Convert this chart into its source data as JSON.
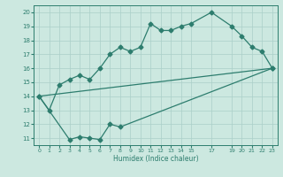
{
  "line1": {
    "x": [
      0,
      1,
      2,
      3,
      4,
      5,
      6,
      7,
      8,
      9,
      10,
      11,
      12,
      13,
      14,
      15,
      17,
      19,
      20,
      21,
      22,
      23
    ],
    "y": [
      14,
      13,
      14.8,
      15.2,
      15.5,
      15.2,
      16,
      17,
      17.5,
      17.2,
      17.5,
      19.2,
      18.7,
      18.7,
      19.0,
      19.2,
      20,
      19.0,
      18.3,
      17.5,
      17.2,
      16.0
    ]
  },
  "line3": {
    "x": [
      0,
      3,
      4,
      5,
      6,
      7,
      8,
      23
    ],
    "y": [
      14,
      10.9,
      11.1,
      11.0,
      10.9,
      12.0,
      11.8,
      16.0
    ]
  },
  "line4": {
    "x": [
      0,
      23
    ],
    "y": [
      14,
      16.0
    ]
  },
  "color": "#2d7d6e",
  "bg_color": "#cce8e0",
  "grid_color": "#aacfc8",
  "xlim": [
    -0.5,
    23.5
  ],
  "ylim": [
    10.5,
    20.5
  ],
  "xticks": [
    0,
    1,
    2,
    3,
    4,
    5,
    6,
    7,
    8,
    9,
    10,
    11,
    12,
    13,
    14,
    15,
    17,
    19,
    20,
    21,
    22,
    23
  ],
  "yticks": [
    11,
    12,
    13,
    14,
    15,
    16,
    17,
    18,
    19,
    20
  ],
  "xlabel": "Humidex (Indice chaleur)"
}
